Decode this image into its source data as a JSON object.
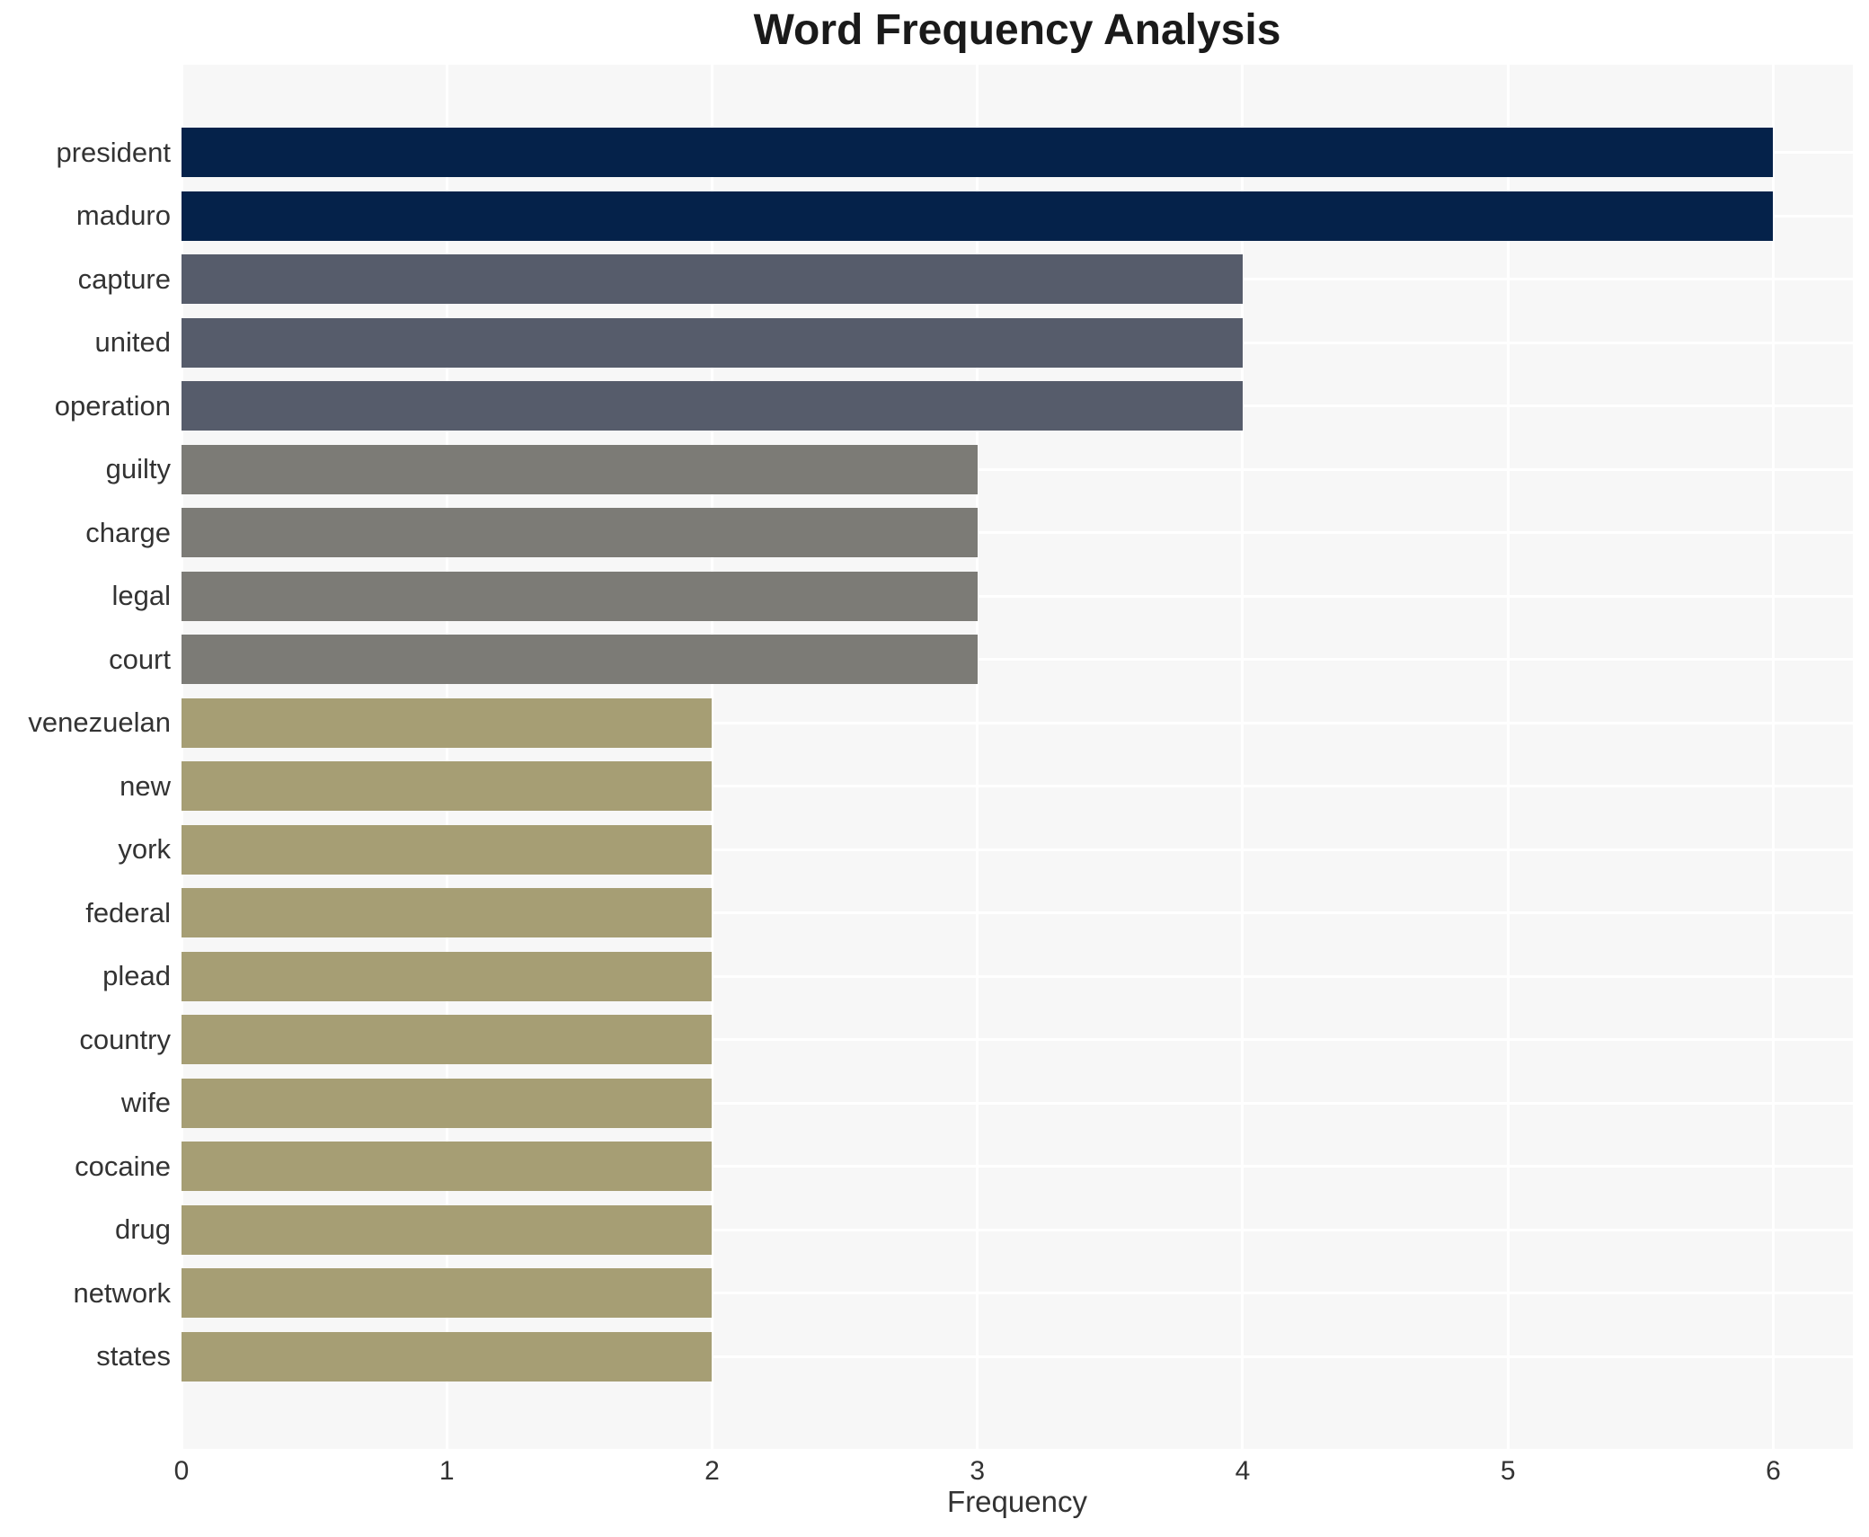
{
  "title": "Word Frequency Analysis",
  "xlabel": "Frequency",
  "chart_data": {
    "type": "bar",
    "orientation": "horizontal",
    "title": "Word Frequency Analysis",
    "xlabel": "Frequency",
    "ylabel": "",
    "categories": [
      "president",
      "maduro",
      "capture",
      "united",
      "operation",
      "guilty",
      "charge",
      "legal",
      "court",
      "venezuelan",
      "new",
      "york",
      "federal",
      "plead",
      "country",
      "wife",
      "cocaine",
      "drug",
      "network",
      "states"
    ],
    "values": [
      6,
      6,
      4,
      4,
      4,
      3,
      3,
      3,
      3,
      2,
      2,
      2,
      2,
      2,
      2,
      2,
      2,
      2,
      2,
      2
    ],
    "bar_colors": [
      "#05224a",
      "#05224a",
      "#565c6b",
      "#565c6b",
      "#565c6b",
      "#7c7b76",
      "#7c7b76",
      "#7c7b76",
      "#7c7b76",
      "#a69e74",
      "#a69e74",
      "#a69e74",
      "#a69e74",
      "#a69e74",
      "#a69e74",
      "#a69e74",
      "#a69e74",
      "#a69e74",
      "#a69e74",
      "#a69e74"
    ],
    "xticks": [
      0,
      1,
      2,
      3,
      4,
      5,
      6
    ],
    "xlim": [
      0,
      6.3
    ],
    "grid": true,
    "legend": "none",
    "plot_background": "#f7f7f7",
    "gridline_color": "#ffffff",
    "text_color": "#333333"
  }
}
